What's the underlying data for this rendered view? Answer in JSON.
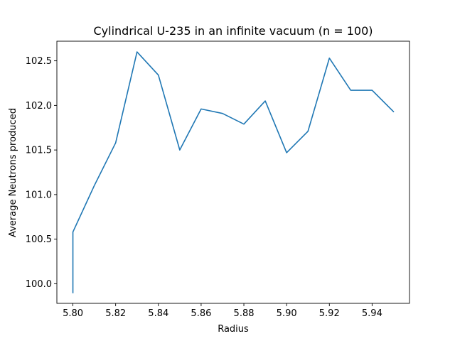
{
  "chart_data": {
    "type": "line",
    "title": "Cylindrical U-235 in an infinite vacuum (n = 100)",
    "xlabel": "Radius",
    "ylabel": "Average Neutrons produced",
    "xlim": [
      5.7925,
      5.9575
    ],
    "ylim": [
      99.78,
      102.72
    ],
    "x_ticks": [
      5.8,
      5.82,
      5.84,
      5.86,
      5.88,
      5.9,
      5.92,
      5.94
    ],
    "x_tick_labels": [
      "5.80",
      "5.82",
      "5.84",
      "5.86",
      "5.88",
      "5.90",
      "5.92",
      "5.94"
    ],
    "y_ticks": [
      100.0,
      100.5,
      101.0,
      101.5,
      102.0,
      102.5
    ],
    "y_tick_labels": [
      "100.0",
      "100.5",
      "101.0",
      "101.5",
      "102.0",
      "102.5"
    ],
    "grid": false,
    "series": [
      {
        "color": "#1f77b4",
        "x": [
          5.8,
          5.8,
          5.81,
          5.82,
          5.83,
          5.84,
          5.85,
          5.86,
          5.87,
          5.88,
          5.89,
          5.9,
          5.91,
          5.92,
          5.93,
          5.94,
          5.95
        ],
        "y": [
          99.9,
          100.58,
          101.1,
          101.58,
          102.6,
          102.34,
          101.5,
          101.96,
          101.91,
          101.79,
          102.05,
          101.47,
          101.71,
          102.53,
          102.17,
          102.17,
          101.93
        ]
      }
    ]
  }
}
